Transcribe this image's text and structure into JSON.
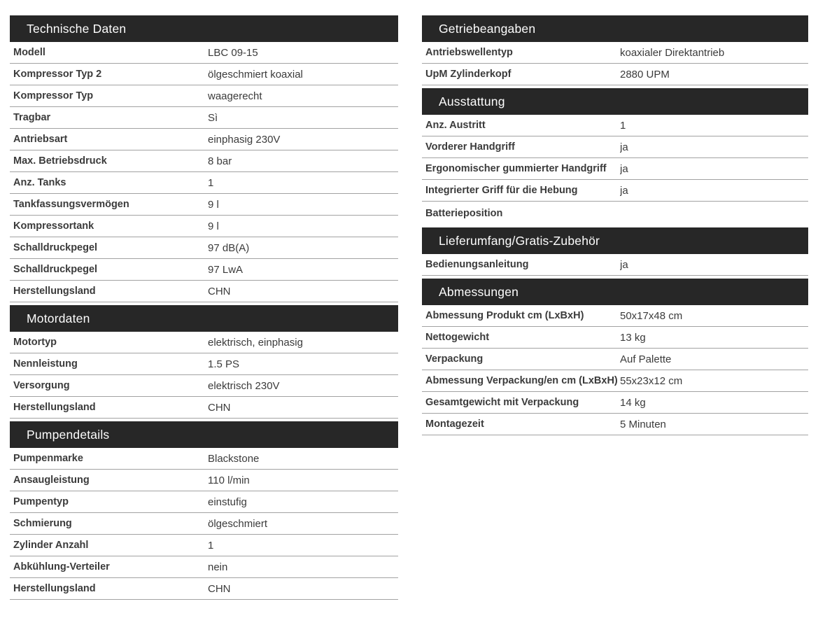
{
  "theme": {
    "header_bg": "#272727",
    "header_text": "#fdfdfd",
    "row_border": "#a2a2a2",
    "text_color": "#3b3b3b",
    "page_bg": "#ffffff"
  },
  "columns": [
    {
      "sections": [
        {
          "title": "Technische Daten",
          "rows": [
            {
              "label": "Modell",
              "value": "LBC 09-15"
            },
            {
              "label": "Kompressor Typ 2",
              "value": "ölgeschmiert koaxial"
            },
            {
              "label": "Kompressor Typ",
              "value": "waagerecht"
            },
            {
              "label": "Tragbar",
              "value": "Sì"
            },
            {
              "label": "Antriebsart",
              "value": "einphasig 230V"
            },
            {
              "label": "Max. Betriebsdruck",
              "value": "8 bar"
            },
            {
              "label": "Anz. Tanks",
              "value": "1"
            },
            {
              "label": "Tankfassungsvermögen",
              "value": "9 l"
            },
            {
              "label": "Kompressortank",
              "value": "9 l"
            },
            {
              "label": "Schalldruckpegel",
              "value": "97 dB(A)"
            },
            {
              "label": "Schalldruckpegel",
              "value": "97 LwA"
            },
            {
              "label": "Herstellungsland",
              "value": "CHN"
            }
          ]
        },
        {
          "title": "Motordaten",
          "rows": [
            {
              "label": "Motortyp",
              "value": "elektrisch, einphasig"
            },
            {
              "label": "Nennleistung",
              "value": "1.5 PS"
            },
            {
              "label": "Versorgung",
              "value": "elektrisch 230V"
            },
            {
              "label": "Herstellungsland",
              "value": "CHN"
            }
          ]
        },
        {
          "title": "Pumpendetails",
          "rows": [
            {
              "label": "Pumpenmarke",
              "value": "Blackstone"
            },
            {
              "label": "Ansaugleistung",
              "value": "110 l/min"
            },
            {
              "label": "Pumpentyp",
              "value": "einstufig"
            },
            {
              "label": "Schmierung",
              "value": "ölgeschmiert"
            },
            {
              "label": "Zylinder Anzahl",
              "value": "1"
            },
            {
              "label": "Abkühlung-Verteiler",
              "value": "nein"
            },
            {
              "label": "Herstellungsland",
              "value": "CHN"
            }
          ]
        }
      ]
    },
    {
      "sections": [
        {
          "title": "Getriebeangaben",
          "rows": [
            {
              "label": "Antriebswellentyp",
              "value": "koaxialer Direktantrieb"
            },
            {
              "label": "UpM Zylinderkopf",
              "value": "2880 UPM"
            }
          ]
        },
        {
          "title": "Ausstattung",
          "rows": [
            {
              "label": "Anz. Austritt",
              "value": "1"
            },
            {
              "label": "Vorderer Handgriff",
              "value": "ja"
            },
            {
              "label": "Ergonomischer gummierter Handgriff",
              "value": "ja"
            },
            {
              "label": "Integrierter Griff für die Hebung",
              "value": "ja"
            },
            {
              "label": "Batterieposition",
              "value": ""
            }
          ]
        },
        {
          "title": "Lieferumfang/Gratis-Zubehör",
          "rows": [
            {
              "label": "Bedienungsanleitung",
              "value": "ja"
            }
          ]
        },
        {
          "title": "Abmessungen",
          "rows": [
            {
              "label": "Abmessung Produkt cm (LxBxH)",
              "value": "50x17x48 cm"
            },
            {
              "label": "Nettogewicht",
              "value": "13 kg"
            },
            {
              "label": "Verpackung",
              "value": "Auf Palette"
            },
            {
              "label": "Abmessung Verpackung/en cm (LxBxH)",
              "value": "55x23x12 cm"
            },
            {
              "label": "Gesamtgewicht mit Verpackung",
              "value": "14 kg"
            },
            {
              "label": "Montagezeit",
              "value": "5 Minuten"
            }
          ]
        }
      ]
    }
  ]
}
